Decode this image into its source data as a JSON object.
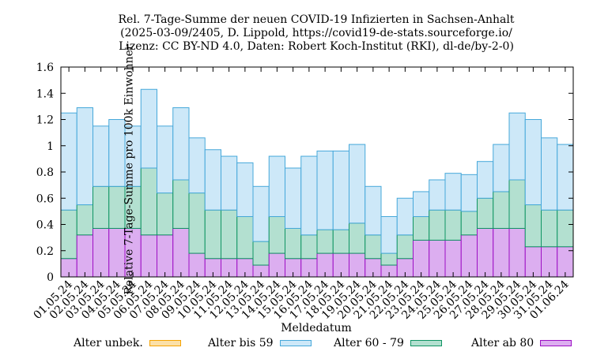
{
  "chart_data": {
    "type": "bar",
    "stacked": true,
    "title_lines": [
      "Rel. 7-Tage-Summe der neuen COVID-19 Infizierten in Sachsen-Anhalt",
      "(2025-03-09/2405, D. Lippold, https://covid19-de-stats.sourceforge.io/",
      "Lizenz: CC BY-ND 4.0, Daten: Robert Koch-Institut (RKI), dl-de/by-2-0)"
    ],
    "xlabel": "Meldedatum",
    "ylabel": "Relative 7-Tage-Summe pro 100k Einwohner",
    "ylim": [
      0,
      1.6
    ],
    "yticks": [
      0,
      0.2,
      0.4,
      0.6,
      0.8,
      1,
      1.2,
      1.4,
      1.6
    ],
    "ytick_labels": [
      "0",
      "0.2",
      "0.4",
      "0.6",
      "0.8",
      "1",
      "1.2",
      "1.4",
      "1.6"
    ],
    "grid": false,
    "legend_position": "bottom",
    "categories": [
      "01.05.24",
      "02.05.24",
      "03.05.24",
      "04.05.24",
      "05.05.24",
      "06.05.24",
      "07.05.24",
      "08.05.24",
      "09.05.24",
      "10.05.24",
      "11.05.24",
      "12.05.24",
      "13.05.24",
      "14.05.24",
      "15.05.24",
      "16.05.24",
      "17.05.24",
      "18.05.24",
      "19.05.24",
      "20.05.24",
      "21.05.24",
      "22.05.24",
      "23.05.24",
      "24.05.24",
      "25.05.24",
      "26.05.24",
      "27.05.24",
      "28.05.24",
      "29.05.24",
      "30.05.24",
      "31.05.24",
      "01.06.24"
    ],
    "series": [
      {
        "name": "Alter unbek.",
        "color": "#f5a300",
        "fill": "#fbe0a8",
        "values": [
          0,
          0,
          0,
          0,
          0,
          0,
          0,
          0,
          0,
          0,
          0,
          0,
          0,
          0,
          0,
          0,
          0,
          0,
          0,
          0,
          0,
          0,
          0,
          0,
          0,
          0,
          0,
          0,
          0,
          0,
          0,
          0
        ]
      },
      {
        "name": "Alter ab 80",
        "color": "#9d0fc4",
        "fill": "#dcaef0",
        "values": [
          0.14,
          0.32,
          0.37,
          0.37,
          0.37,
          0.32,
          0.32,
          0.37,
          0.18,
          0.14,
          0.14,
          0.14,
          0.09,
          0.18,
          0.14,
          0.14,
          0.18,
          0.18,
          0.18,
          0.14,
          0.09,
          0.14,
          0.28,
          0.28,
          0.28,
          0.32,
          0.37,
          0.37,
          0.37,
          0.23,
          0.23,
          0.23
        ]
      },
      {
        "name": "Alter 60 - 79",
        "color": "#0f9463",
        "fill": "#b3e0d0",
        "values": [
          0.37,
          0.23,
          0.32,
          0.32,
          0.32,
          0.51,
          0.32,
          0.37,
          0.46,
          0.37,
          0.37,
          0.32,
          0.18,
          0.28,
          0.23,
          0.18,
          0.18,
          0.18,
          0.23,
          0.18,
          0.09,
          0.18,
          0.18,
          0.23,
          0.23,
          0.18,
          0.23,
          0.28,
          0.37,
          0.32,
          0.28,
          0.28
        ]
      },
      {
        "name": "Alter bis 59",
        "color": "#46a8da",
        "fill": "#cde8f8",
        "values": [
          0.74,
          0.74,
          0.46,
          0.51,
          0.46,
          0.6,
          0.51,
          0.55,
          0.42,
          0.46,
          0.41,
          0.41,
          0.42,
          0.46,
          0.46,
          0.6,
          0.6,
          0.6,
          0.6,
          0.37,
          0.28,
          0.28,
          0.19,
          0.23,
          0.28,
          0.28,
          0.28,
          0.36,
          0.51,
          0.65,
          0.55,
          0.5
        ]
      }
    ],
    "legend_order": [
      "Alter unbek.",
      "Alter bis 59",
      "Alter 60 - 79",
      "Alter ab 80"
    ]
  }
}
